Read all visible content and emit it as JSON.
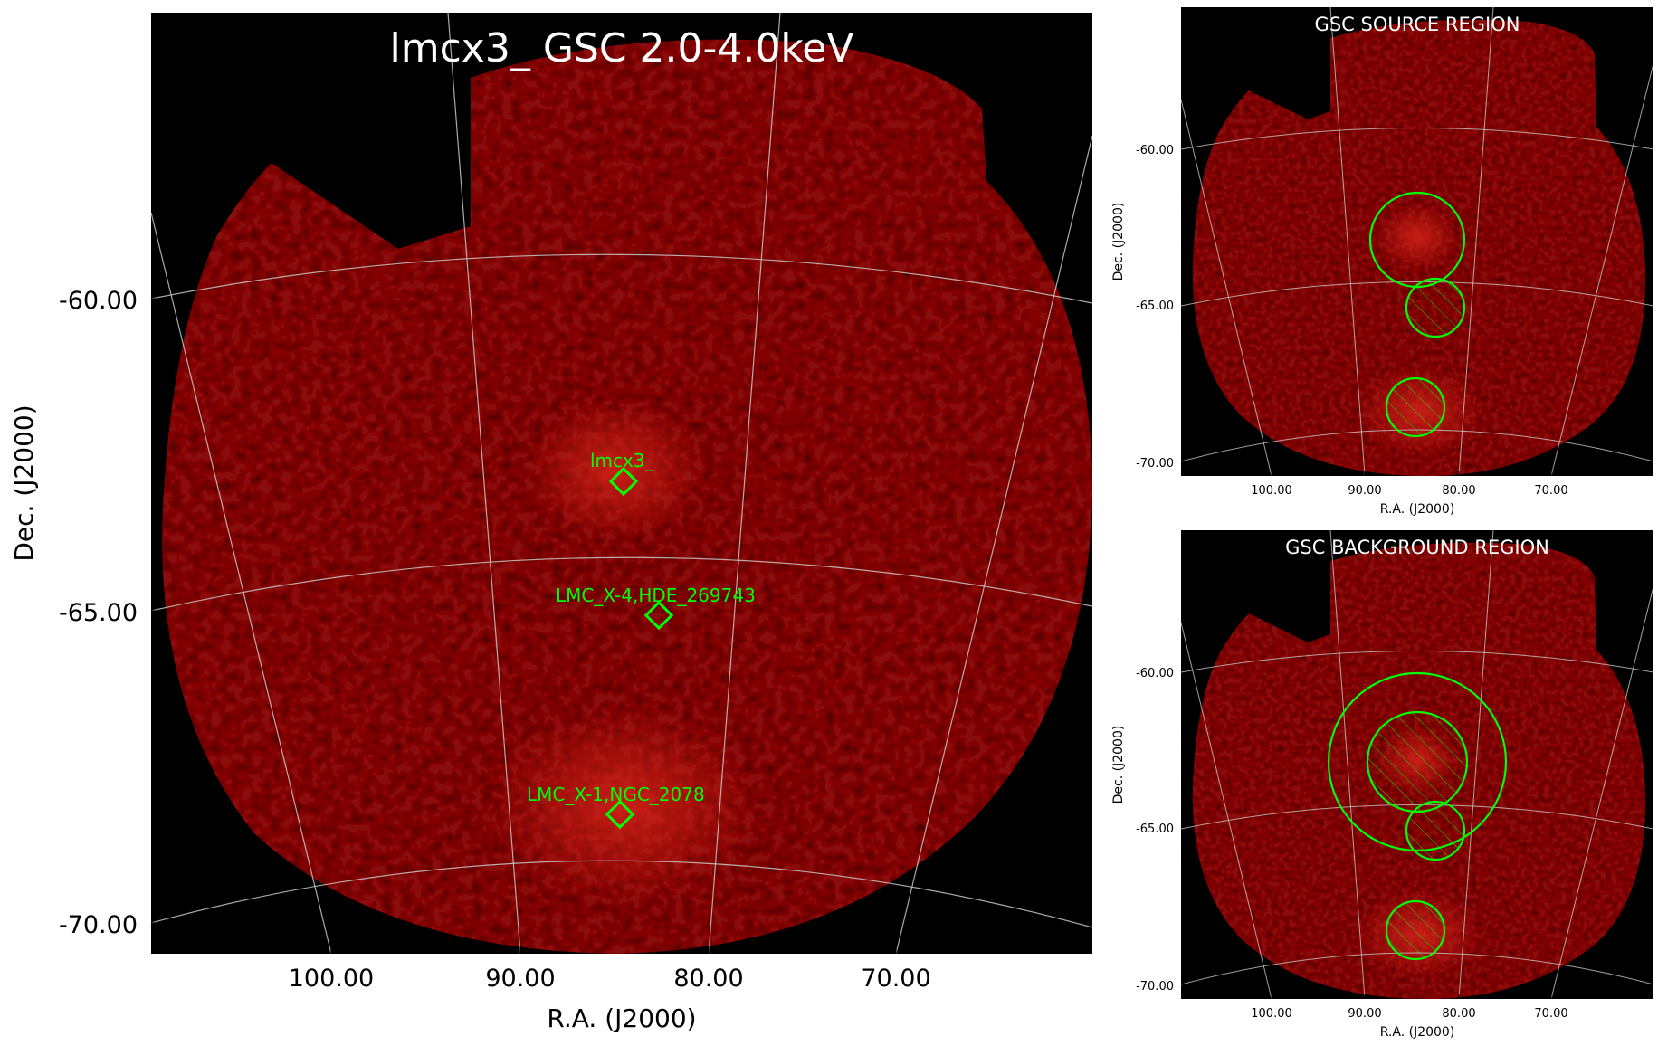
{
  "main_panel": {
    "title": "lmcx3_ GSC 2.0-4.0keV",
    "xlabel": "R.A. (J2000)",
    "ylabel": "Dec. (J2000)",
    "x_ticks": [
      "100.00",
      "90.00",
      "80.00",
      "70.00"
    ],
    "y_ticks": [
      "-60.00",
      "-65.00",
      "-70.00"
    ],
    "sources": [
      {
        "label": "lmcx3_"
      },
      {
        "label": "LMC_X-4,HDE_269743"
      },
      {
        "label": "LMC_X-1,NGC_2078"
      }
    ]
  },
  "source_panel": {
    "title": "GSC SOURCE REGION",
    "xlabel": "R.A. (J2000)",
    "ylabel": "Dec. (J2000)",
    "x_ticks": [
      "100.00",
      "90.00",
      "80.00",
      "70.00"
    ],
    "y_ticks": [
      "-60.00",
      "-65.00",
      "-70.00"
    ]
  },
  "background_panel": {
    "title": "GSC BACKGROUND REGION",
    "xlabel": "R.A. (J2000)",
    "ylabel": "Dec. (J2000)",
    "x_ticks": [
      "100.00",
      "90.00",
      "80.00",
      "70.00"
    ],
    "y_ticks": [
      "-60.00",
      "-65.00",
      "-70.00"
    ]
  },
  "colors": {
    "background": "#000000",
    "emission": "#8a0a08",
    "region": "#00ff00",
    "grid": "#c8c8c8"
  }
}
